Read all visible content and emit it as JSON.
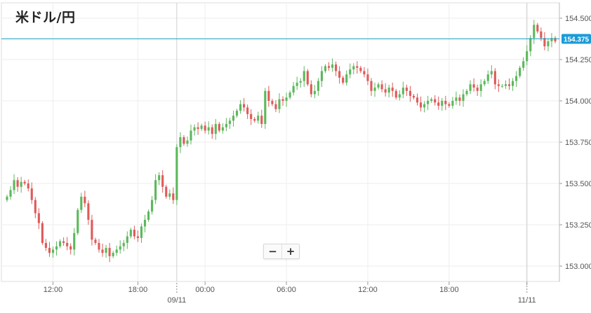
{
  "title": "米ドル/円",
  "zoom": {
    "out_label": "−",
    "in_label": "+"
  },
  "colors": {
    "up": "#5cb85c",
    "down": "#e05a5a",
    "current_line": "#1ba1c4",
    "current_badge": "#1a9bd7",
    "grid": "#eeeeee",
    "axis_text": "#555555"
  },
  "chart_data": {
    "type": "candlestick",
    "title": "米ドル/円",
    "xlabel": "",
    "ylabel": "",
    "ylim": [
      152.98,
      154.55
    ],
    "y_ticks": [
      "154.500",
      "154.250",
      "154.000",
      "153.750",
      "153.500",
      "153.250",
      "153.000"
    ],
    "current_price": "154.375",
    "time_labels": [
      {
        "label": "12:00",
        "index": 13
      },
      {
        "label": "18:00",
        "index": 37
      },
      {
        "label": "00:00",
        "index": 56
      },
      {
        "label": "06:00",
        "index": 79
      },
      {
        "label": "12:00",
        "index": 102
      },
      {
        "label": "18:00",
        "index": 125
      },
      {
        "label": "11/11",
        "index": 147,
        "major": true
      }
    ],
    "date_labels": [
      {
        "label": "09/11",
        "index": 48
      },
      {
        "label": "11/11",
        "index": 147
      }
    ],
    "closes": [
      153.42,
      153.46,
      153.52,
      153.48,
      153.51,
      153.5,
      153.47,
      153.4,
      153.32,
      153.26,
      153.14,
      153.11,
      153.08,
      153.1,
      153.12,
      153.15,
      153.14,
      153.12,
      153.1,
      153.2,
      153.34,
      153.42,
      153.38,
      153.28,
      153.16,
      153.14,
      153.1,
      153.08,
      153.11,
      153.06,
      153.08,
      153.1,
      153.12,
      153.14,
      153.18,
      153.22,
      153.18,
      153.17,
      153.24,
      153.28,
      153.33,
      153.4,
      153.52,
      153.55,
      153.48,
      153.42,
      153.44,
      153.4,
      153.72,
      153.78,
      153.74,
      153.76,
      153.82,
      153.84,
      153.83,
      153.85,
      153.82,
      153.84,
      153.8,
      153.86,
      153.82,
      153.84,
      153.86,
      153.88,
      153.91,
      153.94,
      153.98,
      153.96,
      153.92,
      153.89,
      153.88,
      153.91,
      153.86,
      154.06,
      154.0,
      153.98,
      153.95,
      154.01,
      154.0,
      154.02,
      154.05,
      154.09,
      154.11,
      154.12,
      154.18,
      154.1,
      154.04,
      154.06,
      154.12,
      154.18,
      154.21,
      154.2,
      154.22,
      154.18,
      154.14,
      154.11,
      154.16,
      154.19,
      154.21,
      154.2,
      154.18,
      154.16,
      154.12,
      154.06,
      154.08,
      154.1,
      154.07,
      154.05,
      154.08,
      154.06,
      154.02,
      154.04,
      154.08,
      154.06,
      154.03,
      154.02,
      153.99,
      153.96,
      153.98,
      154.0,
      154.01,
      153.99,
      153.97,
      154.0,
      153.98,
      153.97,
      154.0,
      154.02,
      154.0,
      154.04,
      154.06,
      154.1,
      154.08,
      154.06,
      154.1,
      154.12,
      154.16,
      154.18,
      154.1,
      154.09,
      154.09,
      154.1,
      154.09,
      154.12,
      154.15,
      154.2,
      154.24,
      154.3,
      154.38,
      154.46,
      154.42,
      154.38,
      154.33,
      154.36,
      154.38,
      154.36
    ],
    "series": [
      {
        "name": "",
        "values_ref": "closes"
      }
    ]
  }
}
